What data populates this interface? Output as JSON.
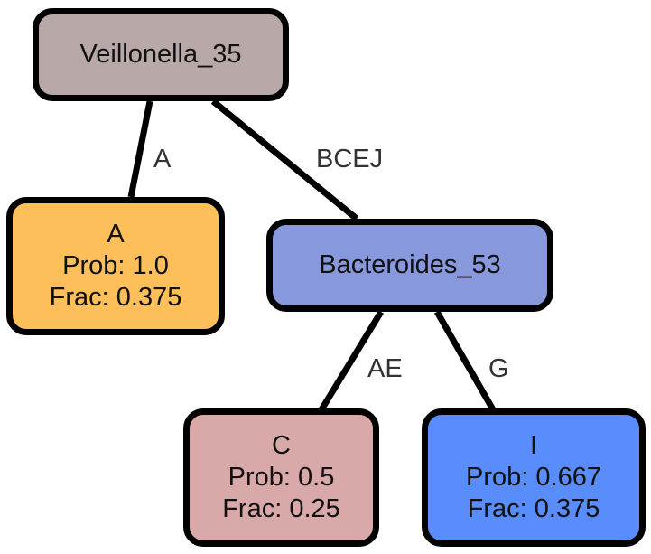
{
  "colors": {
    "veillonella": "#b8a9a8",
    "leaf_a": "#fdbf5a",
    "bacteroides": "#8898dc",
    "leaf_c": "#d9a9a9",
    "leaf_i": "#5a8dfc",
    "edge": "#000000",
    "label_text": "#333333"
  },
  "nodes": {
    "root": {
      "label": "Veillonella_35"
    },
    "a": {
      "name": "A",
      "prob": "Prob: 1.0",
      "frac": "Frac: 0.375"
    },
    "bacteroides": {
      "label": "Bacteroides_53"
    },
    "c": {
      "name": "C",
      "prob": "Prob: 0.5",
      "frac": "Frac: 0.25"
    },
    "i": {
      "name": "I",
      "prob": "Prob: 0.667",
      "frac": "Frac: 0.375"
    }
  },
  "edges": {
    "root_to_a": "A",
    "root_to_bacteroides": "BCEJ",
    "bacteroides_to_c": "AE",
    "bacteroides_to_i": "G"
  }
}
